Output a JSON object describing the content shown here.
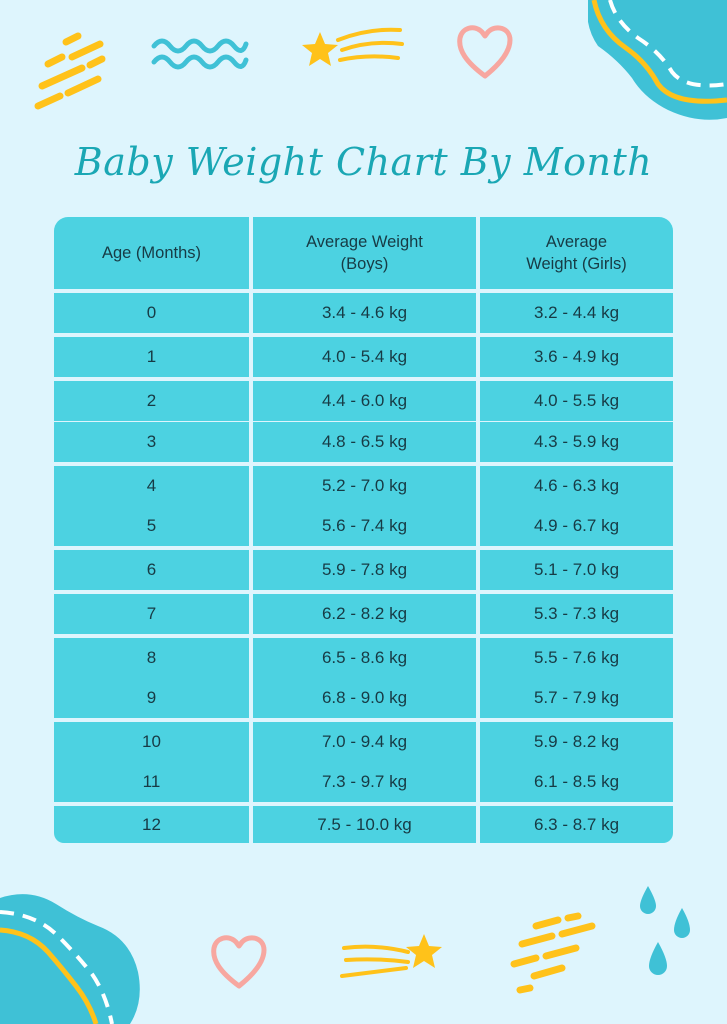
{
  "title": "Baby Weight Chart By Month",
  "colors": {
    "background": "#def5fd",
    "table_fill": "#4cd2e1",
    "title": "#1aa7b4",
    "accent_yellow": "#ffc21a",
    "accent_pink": "#f7a7a0",
    "accent_teal": "#3fc1d6"
  },
  "table": {
    "headers": [
      "Age (Months)",
      "Average Weight (Boys)",
      "Average Weight (Girls)"
    ],
    "rows": [
      [
        "0",
        "3.4 - 4.6 kg",
        "3.2 - 4.4 kg"
      ],
      [
        "1",
        "4.0 - 5.4 kg",
        "3.6 - 4.9 kg"
      ],
      [
        "2",
        "4.4 - 6.0 kg",
        "4.0 - 5.5 kg"
      ],
      [
        "3",
        "4.8 - 6.5 kg",
        "4.3 - 5.9 kg"
      ],
      [
        "4",
        "5.2 - 7.0 kg",
        "4.6 - 6.3 kg"
      ],
      [
        "5",
        "5.6 - 7.4 kg",
        "4.9 - 6.7 kg"
      ],
      [
        "6",
        "5.9 - 7.8 kg",
        "5.1 - 7.0 kg"
      ],
      [
        "7",
        "6.2 - 8.2 kg",
        "5.3 - 7.3 kg"
      ],
      [
        "8",
        "6.5 - 8.6 kg",
        "5.5 - 7.6 kg"
      ],
      [
        "9",
        "6.8 - 9.0 kg",
        "5.7 - 7.9 kg"
      ],
      [
        "10",
        "7.0 - 9.4 kg",
        "5.9 - 8.2 kg"
      ],
      [
        "11",
        "7.3 - 9.7 kg",
        "6.1 - 8.5 kg"
      ],
      [
        "12",
        "7.5 - 10.0 kg",
        "6.3 - 8.7 kg"
      ]
    ]
  },
  "decorations": [
    "dash-marks-icon",
    "wave-icon",
    "shooting-star-icon",
    "heart-icon",
    "blob-icon",
    "raindrop-icon"
  ]
}
